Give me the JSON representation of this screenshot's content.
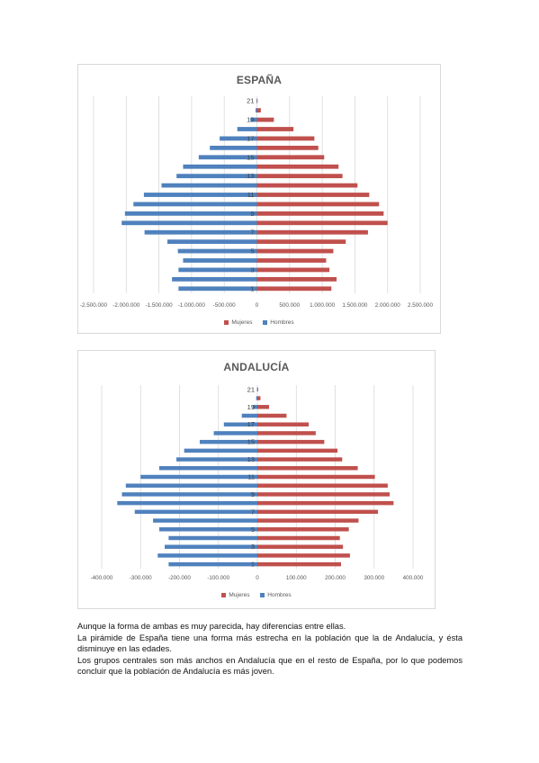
{
  "chart_data": [
    {
      "type": "bar",
      "orientation": "horizontal",
      "title": "ESPAÑA",
      "colors": {
        "Mujeres": "#c0504d",
        "Hombres": "#4f81bd"
      },
      "categories": [
        1,
        2,
        3,
        4,
        5,
        6,
        7,
        8,
        9,
        10,
        11,
        12,
        13,
        14,
        15,
        16,
        17,
        18,
        19,
        20,
        21
      ],
      "category_tick_labels": [
        "1",
        "3",
        "5",
        "7",
        "9",
        "11",
        "13",
        "15",
        "17",
        "19",
        "21"
      ],
      "series": [
        {
          "name": "Mujeres",
          "values": [
            1140000,
            1220000,
            1110000,
            1060000,
            1170000,
            1360000,
            1700000,
            2000000,
            1940000,
            1870000,
            1720000,
            1540000,
            1310000,
            1250000,
            1030000,
            940000,
            880000,
            560000,
            260000,
            60000,
            10000
          ]
        },
        {
          "name": "Hombres",
          "values": [
            -1200000,
            -1300000,
            -1200000,
            -1130000,
            -1210000,
            -1370000,
            -1720000,
            -2070000,
            -2020000,
            -1890000,
            -1730000,
            -1460000,
            -1230000,
            -1130000,
            -890000,
            -720000,
            -570000,
            -300000,
            -100000,
            -20000,
            -5000
          ]
        }
      ],
      "xlim": [
        -2500000,
        2500000
      ],
      "x_ticks": [
        "-2.500.000",
        "-2.000.000",
        "-1.500.000",
        "-1.000.000",
        "-500.000",
        "0",
        "500.000",
        "1.000.000",
        "1.500.000",
        "2.000.000",
        "2.500.000"
      ],
      "grid": "vertical",
      "legend_position": "bottom",
      "legend": [
        "Mujeres",
        "Hombres"
      ]
    },
    {
      "type": "bar",
      "orientation": "horizontal",
      "title": "ANDALUCÍA",
      "colors": {
        "Mujeres": "#c0504d",
        "Hombres": "#4f81bd"
      },
      "categories": [
        1,
        2,
        3,
        4,
        5,
        6,
        7,
        8,
        9,
        10,
        11,
        12,
        13,
        14,
        15,
        16,
        17,
        18,
        19,
        20,
        21
      ],
      "category_tick_labels": [
        "1",
        "3",
        "5",
        "7",
        "9",
        "11",
        "13",
        "15",
        "17",
        "19",
        "21"
      ],
      "series": [
        {
          "name": "Mujeres",
          "values": [
            215000,
            238000,
            220000,
            212000,
            235000,
            260000,
            310000,
            350000,
            340000,
            335000,
            302000,
            258000,
            218000,
            206000,
            172000,
            150000,
            132000,
            75000,
            30000,
            8000,
            2000
          ]
        },
        {
          "name": "Hombres",
          "values": [
            -228000,
            -256000,
            -238000,
            -228000,
            -252000,
            -268000,
            -315000,
            -360000,
            -348000,
            -338000,
            -300000,
            -252000,
            -208000,
            -188000,
            -148000,
            -112000,
            -86000,
            -40000,
            -12000,
            -3000,
            -1000
          ]
        }
      ],
      "xlim": [
        -400000,
        400000
      ],
      "x_ticks": [
        "-400.000",
        "-300.000",
        "-200.000",
        "-100.000",
        "0",
        "100.000",
        "200.000",
        "300.000",
        "400.000"
      ],
      "grid": "vertical",
      "legend_position": "bottom",
      "legend": [
        "Mujeres",
        "Hombres"
      ]
    }
  ],
  "text": {
    "paragraph1": "Aunque la forma de ambas es muy parecida, hay diferencias entre ellas.",
    "paragraph2": "La pirámide de España tiene una forma más estrecha en la población que la de Andalucía, y ésta disminuye en las edades.",
    "paragraph3": "Los grupos centrales son más anchos en Andalucía que en el resto de España, por lo que podemos concluir que la población de Andalucía es más joven."
  }
}
